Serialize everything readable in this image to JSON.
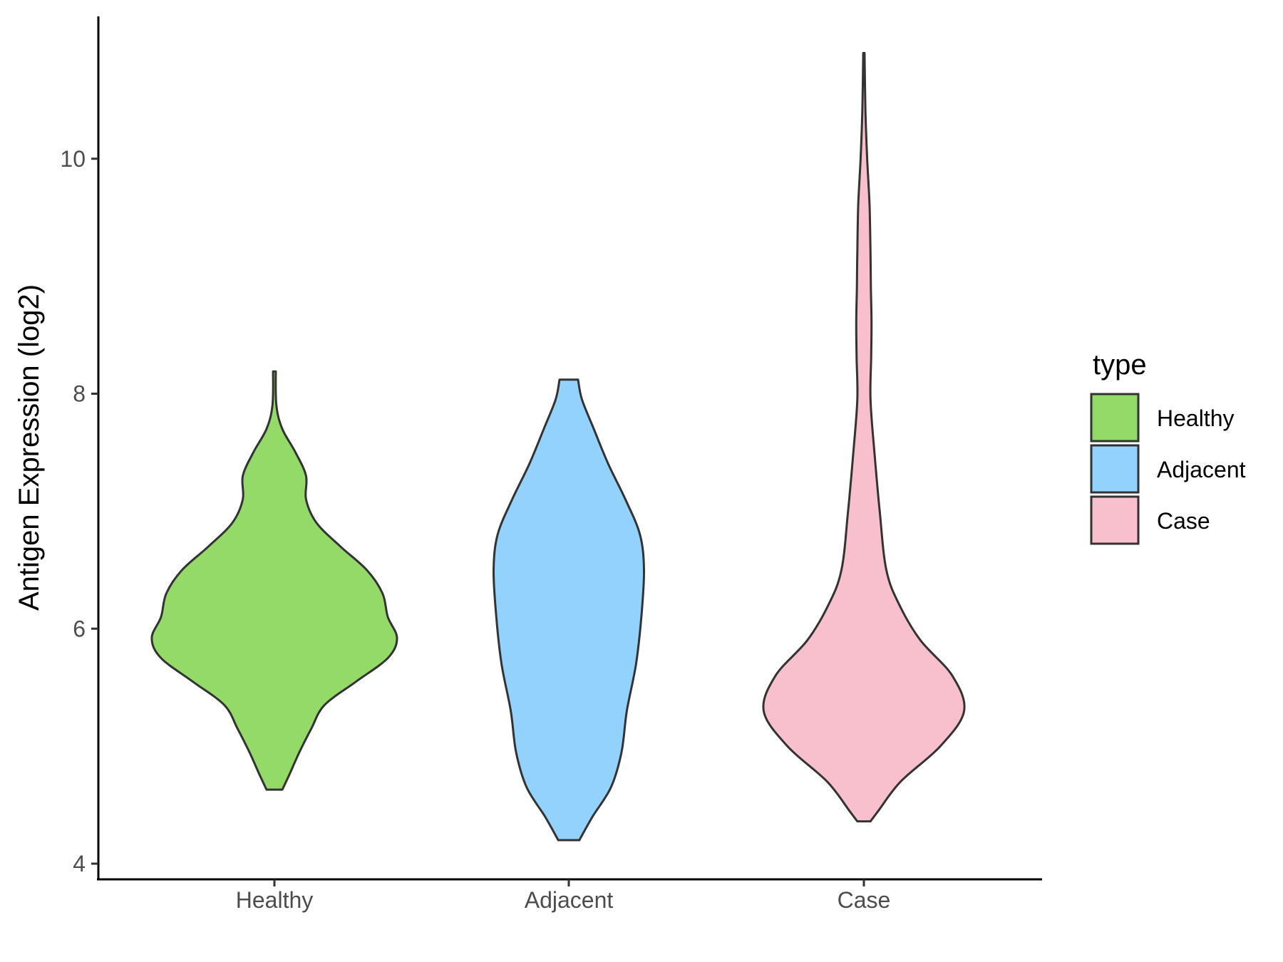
{
  "chart_data": {
    "type": "violin",
    "title": "",
    "xlabel": "",
    "ylabel": "Antigen Expression (log2)",
    "ylim": [
      3.8,
      11.8
    ],
    "yticks": [
      4,
      6,
      8,
      10
    ],
    "categories": [
      "Healthy",
      "Adjacent",
      "Case"
    ],
    "grid": false,
    "legend": {
      "title": "type",
      "position": "right",
      "items": [
        {
          "label": "Healthy",
          "color": "#93DA69"
        },
        {
          "label": "Adjacent",
          "color": "#92D2FD"
        },
        {
          "label": "Case",
          "color": "#F8BFCC"
        }
      ]
    },
    "series": [
      {
        "category": "Healthy",
        "color": "#93DA69",
        "ymin": 4.63,
        "ymax": 8.19,
        "density_profile": [
          [
            4.63,
            0.06
          ],
          [
            4.75,
            0.11
          ],
          [
            4.95,
            0.19
          ],
          [
            5.15,
            0.28
          ],
          [
            5.35,
            0.38
          ],
          [
            5.55,
            0.62
          ],
          [
            5.75,
            0.86
          ],
          [
            5.92,
            0.93
          ],
          [
            6.1,
            0.86
          ],
          [
            6.3,
            0.82
          ],
          [
            6.5,
            0.7
          ],
          [
            6.7,
            0.5
          ],
          [
            6.9,
            0.32
          ],
          [
            7.1,
            0.24
          ],
          [
            7.3,
            0.24
          ],
          [
            7.5,
            0.16
          ],
          [
            7.7,
            0.06
          ],
          [
            7.9,
            0.015
          ],
          [
            8.19,
            0.01
          ]
        ]
      },
      {
        "category": "Adjacent",
        "color": "#92D2FD",
        "ymin": 4.2,
        "ymax": 8.12,
        "density_profile": [
          [
            4.2,
            0.08
          ],
          [
            4.4,
            0.18
          ],
          [
            4.65,
            0.32
          ],
          [
            4.95,
            0.4
          ],
          [
            5.3,
            0.44
          ],
          [
            5.7,
            0.51
          ],
          [
            6.1,
            0.55
          ],
          [
            6.5,
            0.57
          ],
          [
            6.8,
            0.54
          ],
          [
            7.1,
            0.43
          ],
          [
            7.4,
            0.3
          ],
          [
            7.7,
            0.19
          ],
          [
            7.95,
            0.1
          ],
          [
            8.12,
            0.07
          ]
        ]
      },
      {
        "category": "Case",
        "color": "#F8BFCC",
        "ymin": 4.36,
        "ymax": 10.9,
        "density_profile": [
          [
            4.36,
            0.05
          ],
          [
            4.45,
            0.11
          ],
          [
            4.7,
            0.28
          ],
          [
            5.0,
            0.58
          ],
          [
            5.3,
            0.76
          ],
          [
            5.6,
            0.67
          ],
          [
            5.9,
            0.43
          ],
          [
            6.2,
            0.27
          ],
          [
            6.5,
            0.17
          ],
          [
            7.0,
            0.12
          ],
          [
            7.5,
            0.08
          ],
          [
            7.95,
            0.05
          ],
          [
            8.3,
            0.055
          ],
          [
            8.6,
            0.058
          ],
          [
            8.9,
            0.053
          ],
          [
            9.2,
            0.05
          ],
          [
            9.6,
            0.043
          ],
          [
            10.0,
            0.025
          ],
          [
            10.4,
            0.012
          ],
          [
            10.9,
            0.005
          ]
        ]
      }
    ]
  }
}
